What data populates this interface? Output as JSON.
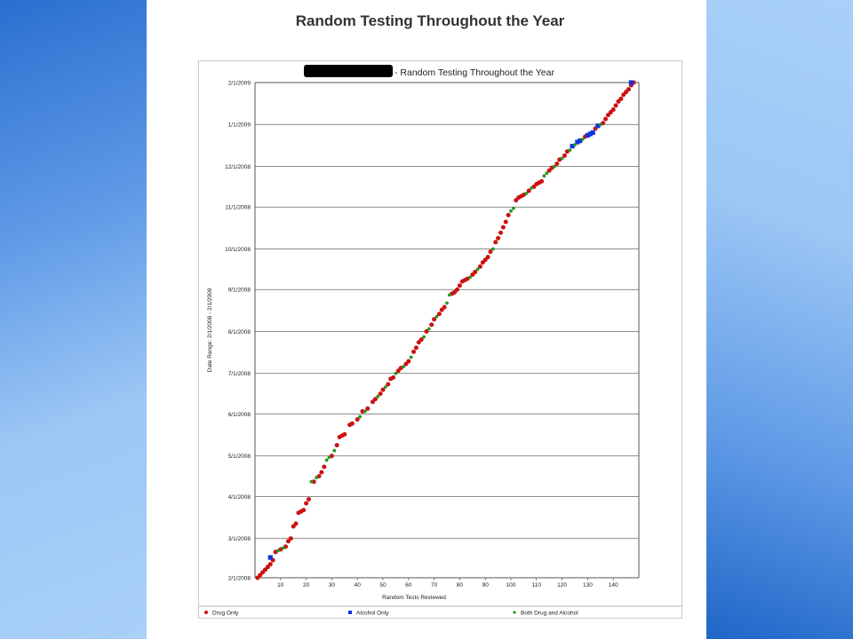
{
  "slide": {
    "title": "Random Testing Throughout the Year"
  },
  "colors": {
    "side_blue_dark": "#2a6fd0",
    "side_blue_light": "#a8d0f8",
    "drug_only": "#cc1111",
    "alcohol_only": "#1133dd",
    "both": "#229922",
    "gridline": "#666666"
  },
  "chart_data": {
    "type": "scatter",
    "title": "- Random Testing Throughout the Year",
    "title_redacted_prefix": true,
    "xlabel": "Random Tests Reviewed",
    "ylabel": "Date Range: 2/1/2008 - 2/1/2009",
    "xlim": [
      0,
      150
    ],
    "x_ticks": [
      10,
      20,
      30,
      40,
      50,
      60,
      70,
      80,
      90,
      100,
      110,
      120,
      130,
      140
    ],
    "y_ticks": [
      "2/1/2008",
      "3/1/2008",
      "4/1/2008",
      "5/1/2008",
      "6/1/2008",
      "7/1/2008",
      "8/1/2008",
      "9/1/2008",
      "10/1/2008",
      "11/1/2008",
      "12/1/2008",
      "1/1/2009",
      "2/1/2009"
    ],
    "grid": true,
    "legend_position": "bottom",
    "series": [
      {
        "name": "Drug Only",
        "marker": "circle",
        "color": "#cc1111",
        "points": [
          [
            1,
            "2008-02-01"
          ],
          [
            2,
            "2008-02-03"
          ],
          [
            3,
            "2008-02-05"
          ],
          [
            4,
            "2008-02-07"
          ],
          [
            5,
            "2008-02-09"
          ],
          [
            6,
            "2008-02-11"
          ],
          [
            7,
            "2008-02-14"
          ],
          [
            8,
            "2008-02-20"
          ],
          [
            10,
            "2008-02-22"
          ],
          [
            12,
            "2008-02-24"
          ],
          [
            13,
            "2008-02-28"
          ],
          [
            14,
            "2008-03-01"
          ],
          [
            15,
            "2008-03-10"
          ],
          [
            16,
            "2008-03-12"
          ],
          [
            17,
            "2008-03-20"
          ],
          [
            18,
            "2008-03-21"
          ],
          [
            19,
            "2008-03-22"
          ],
          [
            20,
            "2008-03-27"
          ],
          [
            21,
            "2008-03-30"
          ],
          [
            23,
            "2008-04-12"
          ],
          [
            25,
            "2008-04-16"
          ],
          [
            26,
            "2008-04-19"
          ],
          [
            27,
            "2008-04-23"
          ],
          [
            30,
            "2008-05-01"
          ],
          [
            32,
            "2008-05-09"
          ],
          [
            33,
            "2008-05-15"
          ],
          [
            34,
            "2008-05-16"
          ],
          [
            35,
            "2008-05-17"
          ],
          [
            37,
            "2008-05-24"
          ],
          [
            38,
            "2008-05-25"
          ],
          [
            40,
            "2008-05-28"
          ],
          [
            42,
            "2008-06-03"
          ],
          [
            44,
            "2008-06-05"
          ],
          [
            46,
            "2008-06-10"
          ],
          [
            47,
            "2008-06-12"
          ],
          [
            49,
            "2008-06-16"
          ],
          [
            50,
            "2008-06-19"
          ],
          [
            52,
            "2008-06-23"
          ],
          [
            53,
            "2008-06-27"
          ],
          [
            54,
            "2008-06-28"
          ],
          [
            56,
            "2008-07-03"
          ],
          [
            57,
            "2008-07-05"
          ],
          [
            59,
            "2008-07-08"
          ],
          [
            60,
            "2008-07-10"
          ],
          [
            62,
            "2008-07-17"
          ],
          [
            63,
            "2008-07-20"
          ],
          [
            64,
            "2008-07-24"
          ],
          [
            65,
            "2008-07-26"
          ],
          [
            67,
            "2008-08-01"
          ],
          [
            69,
            "2008-08-06"
          ],
          [
            70,
            "2008-08-10"
          ],
          [
            72,
            "2008-08-14"
          ],
          [
            73,
            "2008-08-17"
          ],
          [
            74,
            "2008-08-19"
          ],
          [
            77,
            "2008-08-29"
          ],
          [
            78,
            "2008-08-30"
          ],
          [
            79,
            "2008-09-01"
          ],
          [
            80,
            "2008-09-04"
          ],
          [
            81,
            "2008-09-07"
          ],
          [
            82,
            "2008-09-08"
          ],
          [
            83,
            "2008-09-09"
          ],
          [
            85,
            "2008-09-12"
          ],
          [
            86,
            "2008-09-14"
          ],
          [
            88,
            "2008-09-18"
          ],
          [
            89,
            "2008-09-21"
          ],
          [
            90,
            "2008-09-23"
          ],
          [
            91,
            "2008-09-25"
          ],
          [
            92,
            "2008-09-29"
          ],
          [
            94,
            "2008-10-06"
          ],
          [
            95,
            "2008-10-09"
          ],
          [
            96,
            "2008-10-13"
          ],
          [
            97,
            "2008-10-17"
          ],
          [
            98,
            "2008-10-21"
          ],
          [
            99,
            "2008-10-26"
          ],
          [
            102,
            "2008-11-06"
          ],
          [
            103,
            "2008-11-08"
          ],
          [
            104,
            "2008-11-09"
          ],
          [
            105,
            "2008-11-10"
          ],
          [
            107,
            "2008-11-13"
          ],
          [
            109,
            "2008-11-16"
          ],
          [
            110,
            "2008-11-18"
          ],
          [
            111,
            "2008-11-19"
          ],
          [
            112,
            "2008-11-20"
          ],
          [
            115,
            "2008-11-28"
          ],
          [
            116,
            "2008-11-30"
          ],
          [
            118,
            "2008-12-03"
          ],
          [
            119,
            "2008-12-06"
          ],
          [
            121,
            "2008-12-09"
          ],
          [
            122,
            "2008-12-12"
          ],
          [
            129,
            "2008-12-23"
          ],
          [
            133,
            "2008-12-29"
          ],
          [
            136,
            "2009-01-02"
          ],
          [
            137,
            "2009-01-05"
          ],
          [
            138,
            "2009-01-08"
          ],
          [
            139,
            "2009-01-10"
          ],
          [
            140,
            "2009-01-12"
          ],
          [
            141,
            "2009-01-15"
          ],
          [
            142,
            "2009-01-18"
          ],
          [
            143,
            "2009-01-20"
          ],
          [
            144,
            "2009-01-23"
          ],
          [
            145,
            "2009-01-25"
          ],
          [
            146,
            "2009-01-27"
          ],
          [
            147,
            "2009-01-30"
          ],
          [
            148,
            "2009-02-01"
          ]
        ]
      },
      {
        "name": "Alcohol Only",
        "marker": "square",
        "color": "#1133dd",
        "points": [
          [
            6,
            "2008-02-16"
          ],
          [
            124,
            "2008-12-16"
          ],
          [
            126,
            "2008-12-19"
          ],
          [
            127,
            "2008-12-20"
          ],
          [
            130,
            "2008-12-24"
          ],
          [
            131,
            "2008-12-25"
          ],
          [
            132,
            "2008-12-26"
          ],
          [
            134,
            "2008-12-31"
          ],
          [
            147,
            "2009-02-01"
          ]
        ]
      },
      {
        "name": "Both Drug and Alcohol",
        "marker": "dot",
        "color": "#229922",
        "points": [
          [
            9,
            "2008-02-21"
          ],
          [
            11,
            "2008-02-23"
          ],
          [
            22,
            "2008-04-12"
          ],
          [
            24,
            "2008-04-15"
          ],
          [
            28,
            "2008-04-28"
          ],
          [
            29,
            "2008-04-30"
          ],
          [
            31,
            "2008-05-05"
          ],
          [
            41,
            "2008-05-30"
          ],
          [
            43,
            "2008-06-03"
          ],
          [
            48,
            "2008-06-14"
          ],
          [
            51,
            "2008-06-21"
          ],
          [
            55,
            "2008-07-01"
          ],
          [
            58,
            "2008-07-06"
          ],
          [
            61,
            "2008-07-13"
          ],
          [
            66,
            "2008-07-28"
          ],
          [
            68,
            "2008-08-03"
          ],
          [
            71,
            "2008-08-12"
          ],
          [
            75,
            "2008-08-22"
          ],
          [
            76,
            "2008-08-28"
          ],
          [
            84,
            "2008-09-10"
          ],
          [
            87,
            "2008-09-16"
          ],
          [
            93,
            "2008-10-01"
          ],
          [
            100,
            "2008-10-29"
          ],
          [
            101,
            "2008-10-31"
          ],
          [
            106,
            "2008-11-11"
          ],
          [
            108,
            "2008-11-15"
          ],
          [
            113,
            "2008-11-24"
          ],
          [
            114,
            "2008-11-26"
          ],
          [
            117,
            "2008-12-01"
          ],
          [
            120,
            "2008-12-07"
          ],
          [
            123,
            "2008-12-13"
          ],
          [
            125,
            "2008-12-17"
          ],
          [
            128,
            "2008-12-21"
          ],
          [
            135,
            "2009-01-01"
          ]
        ]
      }
    ]
  }
}
